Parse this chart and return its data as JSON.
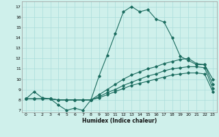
{
  "xlabel": "Humidex (Indice chaleur)",
  "background_color": "#cff0eb",
  "grid_color": "#aaddda",
  "line_color": "#1a6b5e",
  "xlim": [
    -0.5,
    23.5
  ],
  "ylim": [
    6.8,
    17.5
  ],
  "yticks": [
    7,
    8,
    9,
    10,
    11,
    12,
    13,
    14,
    15,
    16,
    17
  ],
  "xticks": [
    0,
    1,
    2,
    3,
    4,
    5,
    6,
    7,
    8,
    9,
    10,
    11,
    12,
    13,
    14,
    15,
    16,
    17,
    18,
    19,
    20,
    21,
    22,
    23
  ],
  "series": [
    [
      8.1,
      8.8,
      8.2,
      8.1,
      7.5,
      7.0,
      7.2,
      7.0,
      8.0,
      10.3,
      12.3,
      14.4,
      16.5,
      17.0,
      16.5,
      16.7,
      15.8,
      15.5,
      14.0,
      12.2,
      11.8,
      11.4,
      11.4,
      10.0
    ],
    [
      8.1,
      8.1,
      8.1,
      8.1,
      8.0,
      8.0,
      8.0,
      8.0,
      8.0,
      8.5,
      9.0,
      9.5,
      10.0,
      10.4,
      10.7,
      11.0,
      11.2,
      11.5,
      11.7,
      11.9,
      12.0,
      11.5,
      11.4,
      9.5
    ],
    [
      8.1,
      8.1,
      8.1,
      8.1,
      8.0,
      8.0,
      8.0,
      8.0,
      8.0,
      8.3,
      8.7,
      9.0,
      9.4,
      9.7,
      10.0,
      10.3,
      10.5,
      10.8,
      11.0,
      11.1,
      11.2,
      11.2,
      11.1,
      9.1
    ],
    [
      8.1,
      8.1,
      8.1,
      8.1,
      8.0,
      8.0,
      8.0,
      8.0,
      8.0,
      8.2,
      8.5,
      8.8,
      9.1,
      9.4,
      9.6,
      9.8,
      10.0,
      10.2,
      10.4,
      10.5,
      10.6,
      10.6,
      10.5,
      8.8
    ]
  ]
}
